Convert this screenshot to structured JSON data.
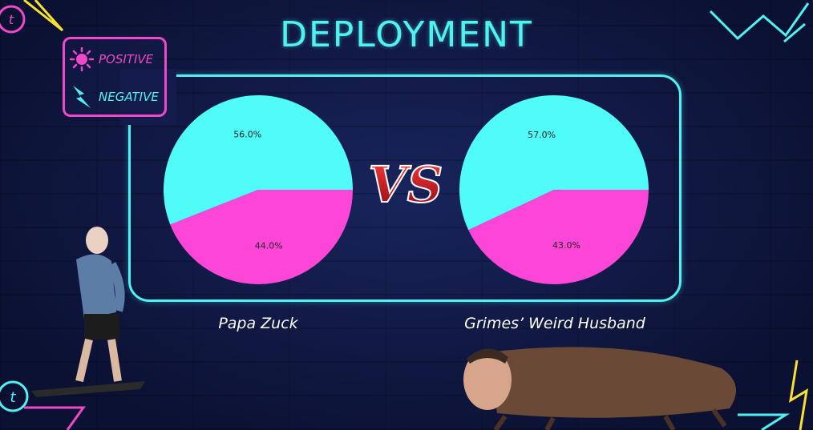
{
  "title": "DEPLOYMENT",
  "legend": {
    "positive_label": "POSITIVE",
    "negative_label": "NEGATIVE"
  },
  "vs_text": "VS",
  "colors": {
    "positive": "#4ffcf8",
    "negative": "#fd46d8",
    "accent_cyan": "#4ff2f0",
    "accent_pink": "#f048c8",
    "background": "#131d4e"
  },
  "chart_data": [
    {
      "type": "pie",
      "caption": "Papa Zuck",
      "slices": [
        {
          "label": "Positive",
          "value": 56.0,
          "display": "56.0%",
          "color": "#4ffcf8"
        },
        {
          "label": "Negative",
          "value": 44.0,
          "display": "44.0%",
          "color": "#fd46d8"
        }
      ]
    },
    {
      "type": "pie",
      "caption": "Grimes’ Weird Husband",
      "slices": [
        {
          "label": "Positive",
          "value": 57.0,
          "display": "57.0%",
          "color": "#4ffcf8"
        },
        {
          "label": "Negative",
          "value": 43.0,
          "display": "43.0%",
          "color": "#fd46d8"
        }
      ]
    }
  ]
}
